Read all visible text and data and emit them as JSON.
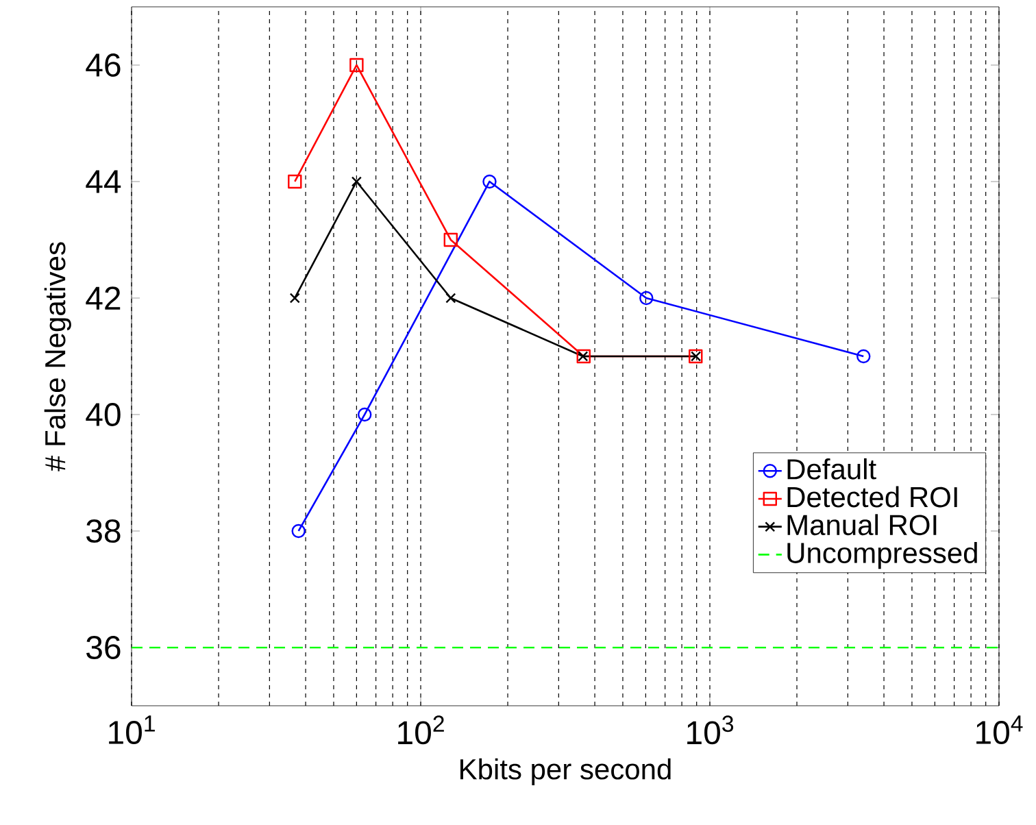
{
  "chart_data": {
    "type": "line",
    "xlabel": "Kbits per second",
    "ylabel": "# False Negatives",
    "log": "x",
    "grid": "x",
    "legend": "bottom right",
    "xlim": [
      10,
      10000
    ],
    "ylim": [
      35,
      47
    ],
    "xticks": [
      {
        "value": 10,
        "label": "10$^{1}$"
      },
      {
        "value": 100,
        "label": "10$^{2}$"
      },
      {
        "value": 1000,
        "label": "10$^{3}$"
      },
      {
        "value": 10000,
        "label": "10$^{4}$"
      }
    ],
    "yticks": [
      36,
      38,
      40,
      42,
      44,
      46
    ],
    "series": [
      {
        "name": "Default",
        "color": "#0000ff",
        "marker": "circle",
        "line_style": "solid",
        "x": [
          37.8,
          64,
          173,
          603,
          3400
        ],
        "values": [
          38,
          40,
          44,
          42,
          41
        ]
      },
      {
        "name": "Detected ROI",
        "color": "#ff0000",
        "marker": "square",
        "line_style": "solid",
        "x": [
          36.7,
          60,
          127,
          366,
          893
        ],
        "values": [
          44,
          46,
          43,
          41,
          41
        ]
      },
      {
        "name": "Manual ROI",
        "color": "#000000",
        "marker": "cross",
        "line_style": "solid",
        "x": [
          36.7,
          60,
          127,
          364,
          895
        ],
        "values": [
          42,
          44,
          42,
          41,
          41
        ]
      },
      {
        "name": "Uncompressed",
        "color": "#00ff00",
        "marker": "none",
        "line_style": "dashed",
        "x": [
          10,
          10000
        ],
        "values": [
          36,
          36
        ]
      }
    ]
  }
}
